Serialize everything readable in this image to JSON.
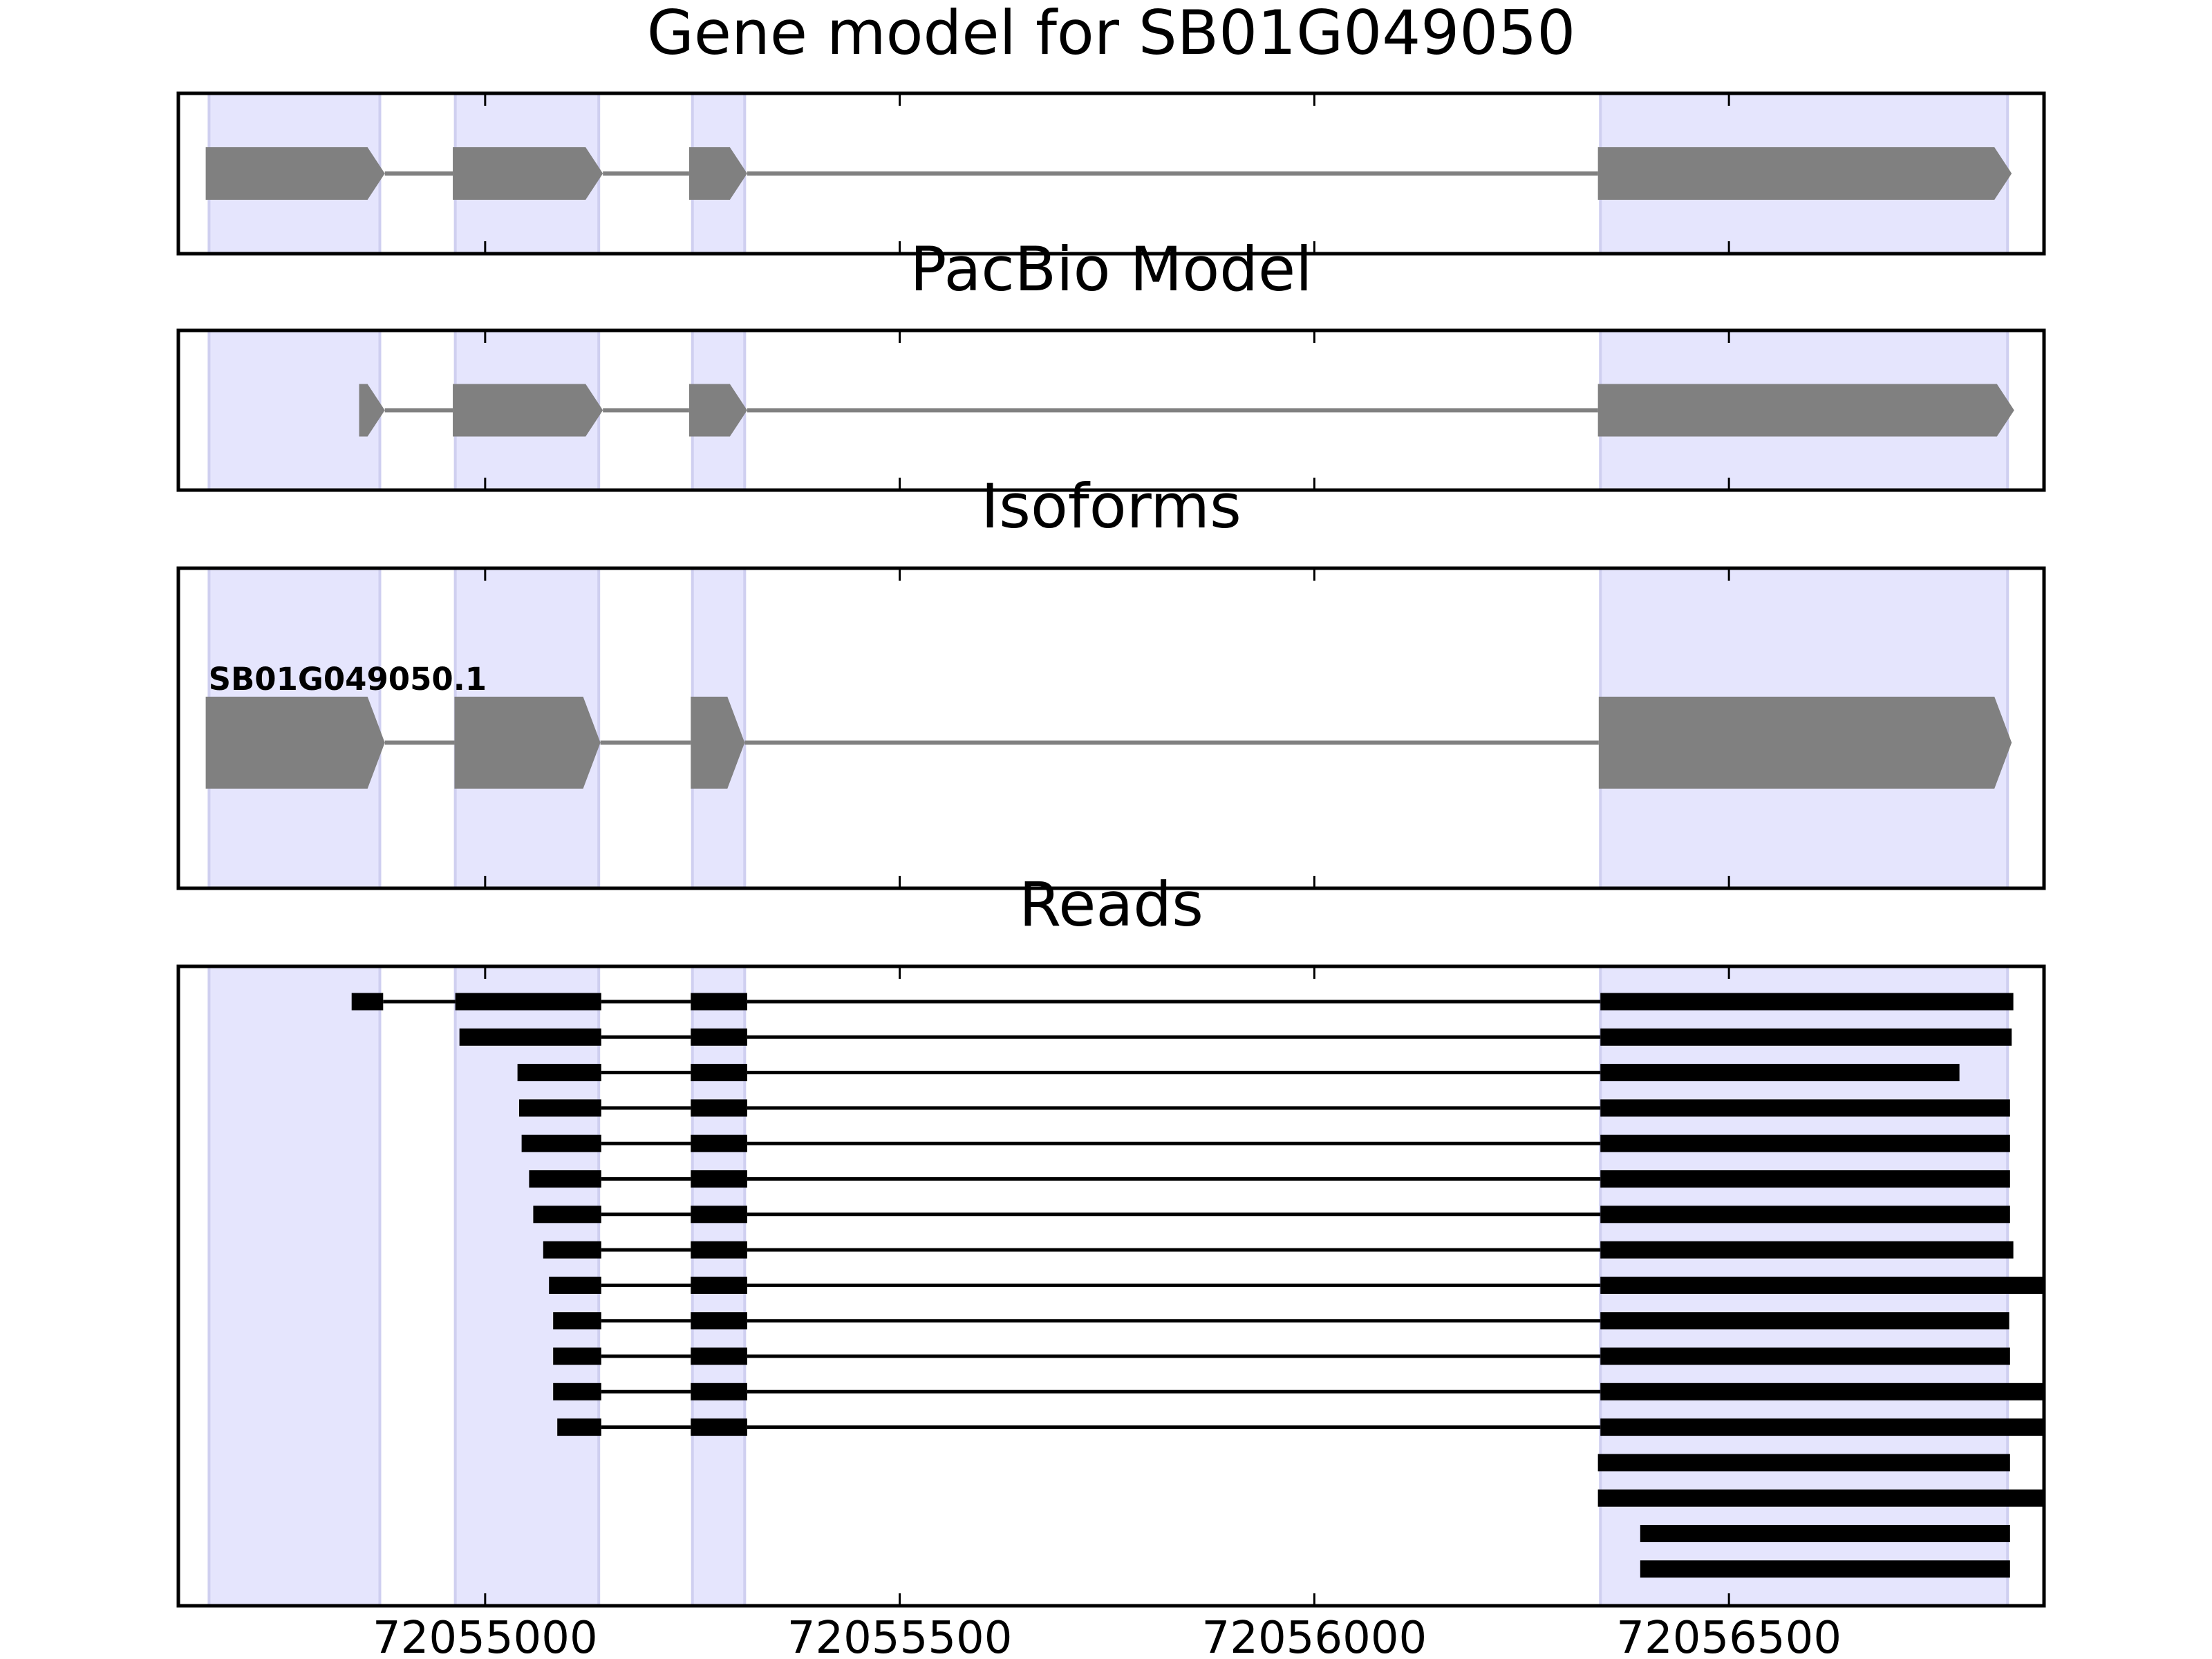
{
  "chart_data": {
    "type": "genetracks",
    "xlim": [
      72054630,
      72056880
    ],
    "xticks": [
      72055000,
      72055500,
      72056000,
      72056500
    ],
    "region_color": "#e5e5fd",
    "regions": [
      [
        72054667,
        72054873
      ],
      [
        72054964,
        72055137
      ],
      [
        72055250,
        72055313
      ],
      [
        72056345,
        72056836
      ]
    ],
    "panels": [
      {
        "title": "Gene model for SB01G049050",
        "style": "gene",
        "color": "#808080",
        "features": [
          {
            "exons": [
              [
                72054663,
                72054879
              ],
              [
                72054961,
                72055142
              ],
              [
                72055246,
                72055316
              ],
              [
                72056342,
                72056841
              ]
            ]
          }
        ]
      },
      {
        "title": "PacBio Model",
        "style": "gene",
        "color": "#808080",
        "features": [
          {
            "exons": [
              [
                72054848,
                72054879
              ],
              [
                72054961,
                72055142
              ],
              [
                72055246,
                72055316
              ],
              [
                72056342,
                72056844
              ]
            ]
          }
        ]
      },
      {
        "title": "Isoforms",
        "style": "isoform",
        "color": "#808080",
        "features": [
          {
            "label": "SB01G049050.1",
            "exons": [
              [
                72054663,
                72054879
              ],
              [
                72054963,
                72055139
              ],
              [
                72055248,
                72055313
              ],
              [
                72056343,
                72056841
              ]
            ]
          }
        ]
      },
      {
        "title": "Reads",
        "style": "reads",
        "color": "#000000",
        "features": [
          {
            "exons": [
              [
                72054839,
                72054877
              ],
              [
                72054964,
                72055140
              ],
              [
                72055248,
                72055316
              ],
              [
                72056345,
                72056843
              ]
            ]
          },
          {
            "exons": [
              [
                72054969,
                72055140
              ],
              [
                72055248,
                72055316
              ],
              [
                72056345,
                72056841
              ]
            ]
          },
          {
            "exons": [
              [
                72055039,
                72055140
              ],
              [
                72055248,
                72055316
              ],
              [
                72056345,
                72056778
              ]
            ]
          },
          {
            "exons": [
              [
                72055041,
                72055140
              ],
              [
                72055248,
                72055316
              ],
              [
                72056345,
                72056839
              ]
            ]
          },
          {
            "exons": [
              [
                72055044,
                72055140
              ],
              [
                72055248,
                72055316
              ],
              [
                72056345,
                72056839
              ]
            ]
          },
          {
            "exons": [
              [
                72055053,
                72055140
              ],
              [
                72055248,
                72055316
              ],
              [
                72056345,
                72056839
              ]
            ]
          },
          {
            "exons": [
              [
                72055058,
                72055140
              ],
              [
                72055248,
                72055316
              ],
              [
                72056345,
                72056839
              ]
            ]
          },
          {
            "exons": [
              [
                72055070,
                72055140
              ],
              [
                72055248,
                72055316
              ],
              [
                72056345,
                72056843
              ]
            ]
          },
          {
            "exons": [
              [
                72055077,
                72055140
              ],
              [
                72055248,
                72055316
              ],
              [
                72056345,
                72056900
              ]
            ]
          },
          {
            "exons": [
              [
                72055082,
                72055140
              ],
              [
                72055248,
                72055316
              ],
              [
                72056345,
                72056838
              ]
            ]
          },
          {
            "exons": [
              [
                72055082,
                72055140
              ],
              [
                72055248,
                72055316
              ],
              [
                72056345,
                72056839
              ]
            ]
          },
          {
            "exons": [
              [
                72055082,
                72055140
              ],
              [
                72055248,
                72055316
              ],
              [
                72056345,
                72056900
              ]
            ]
          },
          {
            "exons": [
              [
                72055087,
                72055140
              ],
              [
                72055248,
                72055316
              ],
              [
                72056345,
                72056900
              ]
            ]
          },
          {
            "exons": [
              [
                72056342,
                72056839
              ]
            ]
          },
          {
            "exons": [
              [
                72056342,
                72056900
              ]
            ]
          },
          {
            "exons": [
              [
                72056393,
                72056839
              ]
            ]
          },
          {
            "exons": [
              [
                72056393,
                72056839
              ]
            ]
          }
        ]
      }
    ]
  }
}
